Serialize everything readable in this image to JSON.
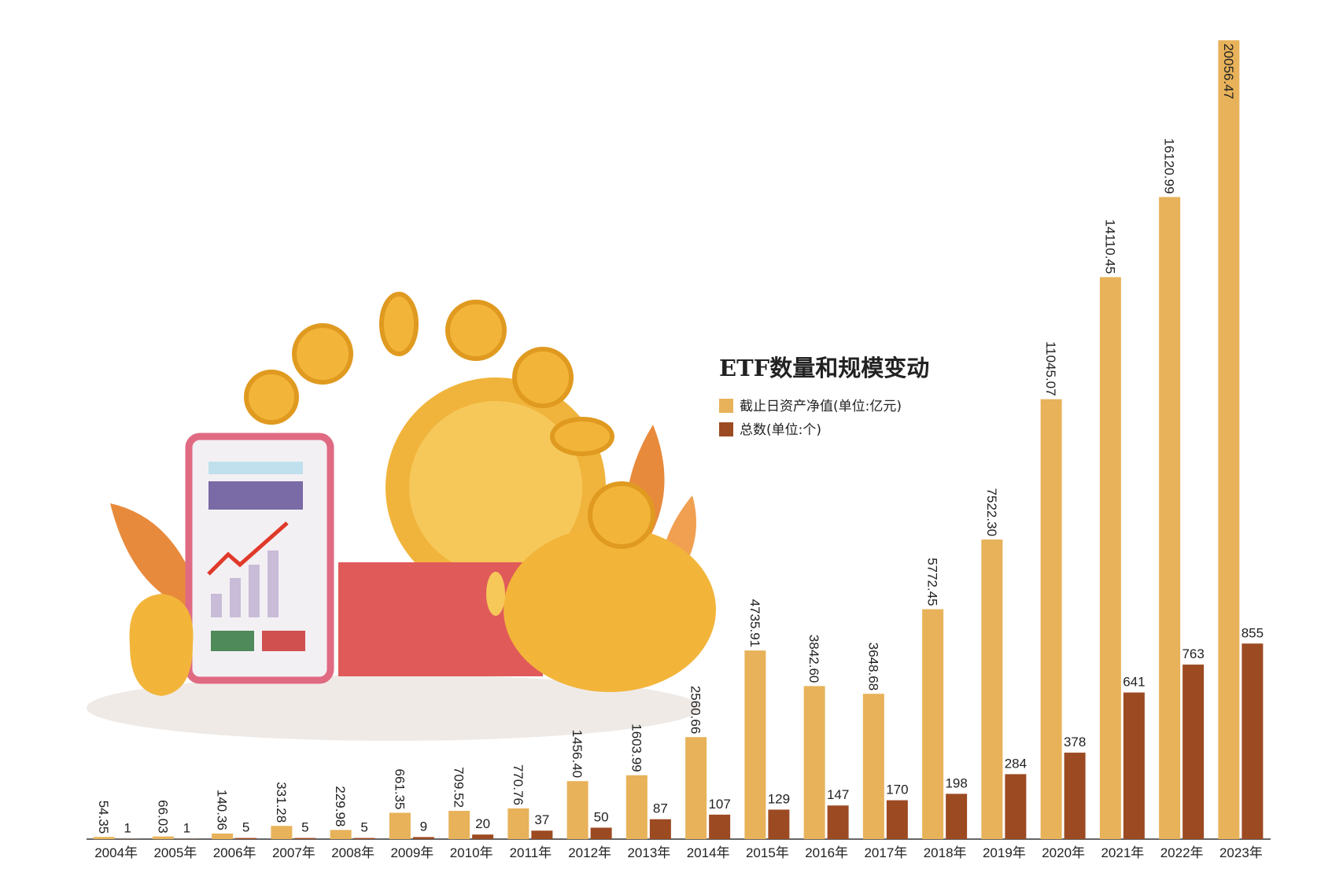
{
  "chart_data": {
    "type": "bar",
    "title": "ETF数量和规模变动",
    "categories": [
      "2004年",
      "2005年",
      "2006年",
      "2007年",
      "2008年",
      "2009年",
      "2010年",
      "2011年",
      "2012年",
      "2013年",
      "2014年",
      "2015年",
      "2016年",
      "2017年",
      "2018年",
      "2019年",
      "2020年",
      "2021年",
      "2022年",
      "2023年"
    ],
    "series": [
      {
        "name": "截止日资产净值(单位:亿元)",
        "color": "#e8b25a",
        "axis": "y",
        "values": [
          54.35,
          66.03,
          140.36,
          331.28,
          229.98,
          661.35,
          709.52,
          770.76,
          1456.4,
          1603.99,
          2560.66,
          4735.91,
          3842.6,
          3648.68,
          5772.45,
          7522.3,
          11045.07,
          14110.45,
          16120.99,
          20056.47
        ],
        "value_labels": [
          "54.35",
          "66.03",
          "140.36",
          "331.28",
          "229.98",
          "661.35",
          "709.52",
          "770.76",
          "1456.40",
          "1603.99",
          "2560.66",
          "4735.91",
          "3842.60",
          "3648.68",
          "5772.45",
          "7522.30",
          "11045.07",
          "14110.45",
          "16120.99",
          "20056.47"
        ]
      },
      {
        "name": "总数(单位:个)",
        "color": "#9c4a22",
        "axis": "y2",
        "values": [
          1,
          1,
          5,
          5,
          5,
          9,
          20,
          37,
          50,
          87,
          107,
          129,
          147,
          170,
          198,
          284,
          378,
          641,
          763,
          855
        ]
      }
    ],
    "ylim": [
      0,
      20100
    ],
    "y2lim": [
      0,
      3500
    ]
  }
}
